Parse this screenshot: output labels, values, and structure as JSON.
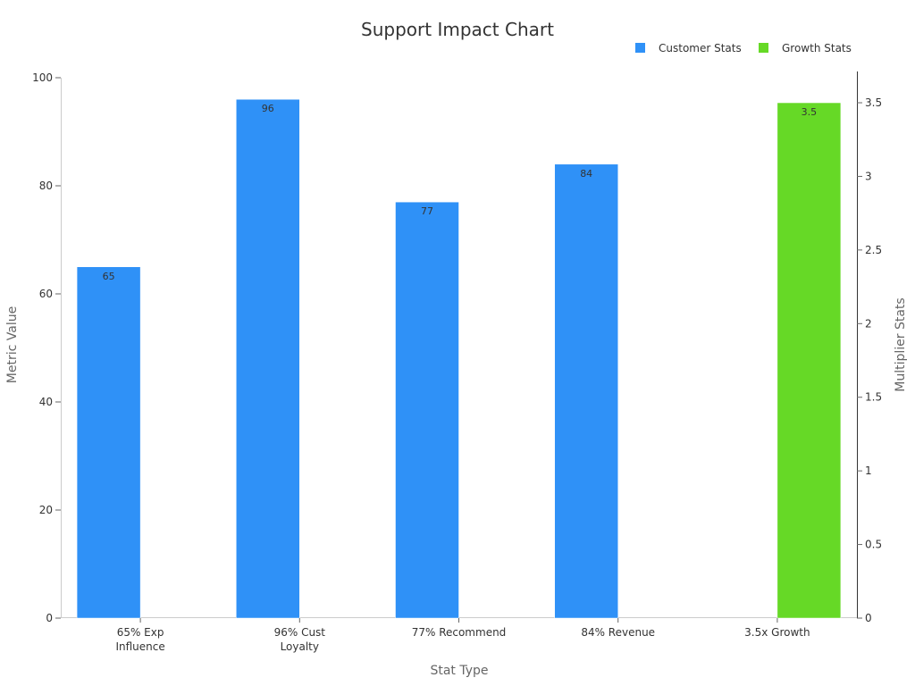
{
  "chart_data": {
    "type": "bar",
    "title": "Support Impact Chart",
    "xlabel": "Stat Type",
    "ylabel": "Metric Value",
    "y2label": "Multiplier Stats",
    "categories": [
      "65% Exp Influence",
      "96% Cust Loyalty",
      "77% Recommend",
      "84% Revenue",
      "3.5x Growth"
    ],
    "category_lines": [
      [
        "65% Exp",
        "Influence"
      ],
      [
        "96% Cust",
        "Loyalty"
      ],
      [
        "77% Recommend"
      ],
      [
        "84% Revenue"
      ],
      [
        "3.5x Growth"
      ]
    ],
    "ylim": [
      0,
      100
    ],
    "y2lim": [
      0,
      3.67
    ],
    "yticks": [
      "0",
      "20",
      "40",
      "60",
      "80",
      "100"
    ],
    "y2ticks": [
      "0",
      "0.5",
      "1",
      "1.5",
      "2",
      "2.5",
      "3",
      "3.5"
    ],
    "grid": false,
    "legend_position": "top-right",
    "series": [
      {
        "name": "Customer Stats",
        "axis": "left",
        "color": "#2f91f7",
        "values": [
          65,
          96,
          77,
          84,
          null
        ],
        "labels": [
          "65",
          "96",
          "77",
          "84",
          ""
        ]
      },
      {
        "name": "Growth Stats",
        "axis": "right",
        "color": "#66d926",
        "values": [
          null,
          null,
          null,
          null,
          3.5
        ],
        "labels": [
          "",
          "",
          "",
          "",
          "3.5"
        ]
      }
    ]
  }
}
